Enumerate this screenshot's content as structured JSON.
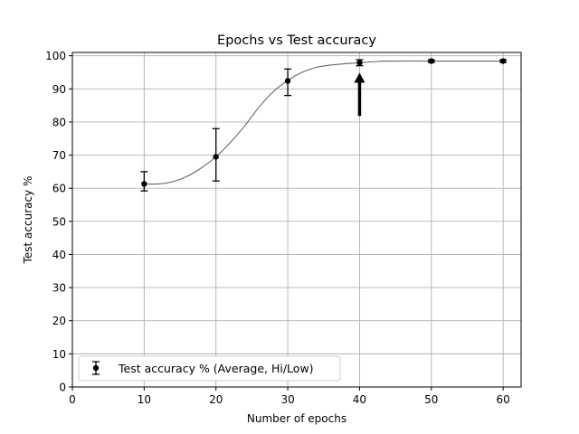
{
  "chart_data": {
    "type": "line",
    "title": "Epochs vs Test accuracy",
    "xlabel": "Number of epochs",
    "ylabel": "Test accuracy %",
    "xlim": [
      0,
      62.5
    ],
    "ylim": [
      0,
      101
    ],
    "xticks": [
      0,
      10,
      20,
      30,
      40,
      50,
      60
    ],
    "yticks": [
      0,
      10,
      20,
      30,
      40,
      50,
      60,
      70,
      80,
      90,
      100
    ],
    "grid": true,
    "legend_position": "lower-left",
    "series": [
      {
        "name": "Test accuracy % (Average, Hi/Low)",
        "type": "errorbar",
        "color": "#000000",
        "points": [
          {
            "x": 10,
            "y": 61.3,
            "low": 59.2,
            "high": 65.0
          },
          {
            "x": 20,
            "y": 69.5,
            "low": 62.2,
            "high": 78.0
          },
          {
            "x": 30,
            "y": 92.4,
            "low": 88.0,
            "high": 96.0
          },
          {
            "x": 40,
            "y": 97.9,
            "low": 97.0,
            "high": 98.8
          },
          {
            "x": 50,
            "y": 98.4,
            "low": 98.0,
            "high": 98.8
          },
          {
            "x": 60,
            "y": 98.4,
            "low": 98.0,
            "high": 98.8
          }
        ]
      }
    ],
    "fit_curve": {
      "color": "#666666",
      "x": [
        10,
        12,
        14,
        16,
        18,
        20,
        22,
        24,
        26,
        28,
        30,
        32,
        34,
        36,
        38,
        40,
        42,
        44,
        50,
        55,
        60
      ],
      "y": [
        61.3,
        61.3,
        62.0,
        63.6,
        66.2,
        69.5,
        73.8,
        78.8,
        84.5,
        89.2,
        92.6,
        95.0,
        96.5,
        97.2,
        97.6,
        97.9,
        98.2,
        98.4,
        98.4,
        98.4,
        98.4
      ]
    },
    "annotation_arrow": {
      "color": "#000000",
      "x": 40,
      "y_from": 81.8,
      "y_to": 94.6
    }
  }
}
